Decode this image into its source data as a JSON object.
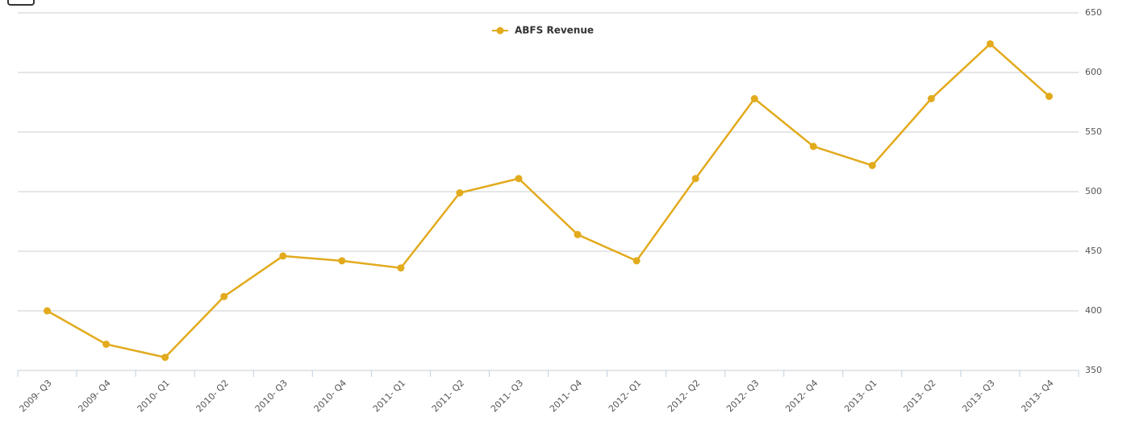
{
  "chart_data": {
    "type": "line",
    "categories": [
      "2009- Q3",
      "2009- Q4",
      "2010- Q1",
      "2010- Q2",
      "2010- Q3",
      "2010- Q4",
      "2011- Q1",
      "2011- Q2",
      "2011- Q3",
      "2011- Q4",
      "2012- Q1",
      "2012- Q2",
      "2012- Q3",
      "2012- Q4",
      "2013- Q1",
      "2013- Q2",
      "2013- Q3",
      "2013- Q4"
    ],
    "series": [
      {
        "name": "ABFS Revenue",
        "color": "#e2aa1d",
        "values": [
          400,
          372,
          361,
          412,
          446,
          442,
          436,
          499,
          511,
          464,
          442,
          511,
          578,
          538,
          522,
          578,
          624,
          580
        ]
      }
    ],
    "ylim": [
      350,
      650
    ],
    "yticks": [
      350,
      400,
      450,
      500,
      550,
      600,
      650
    ],
    "grid": true,
    "y_axis_side": "right",
    "legend": "top"
  }
}
